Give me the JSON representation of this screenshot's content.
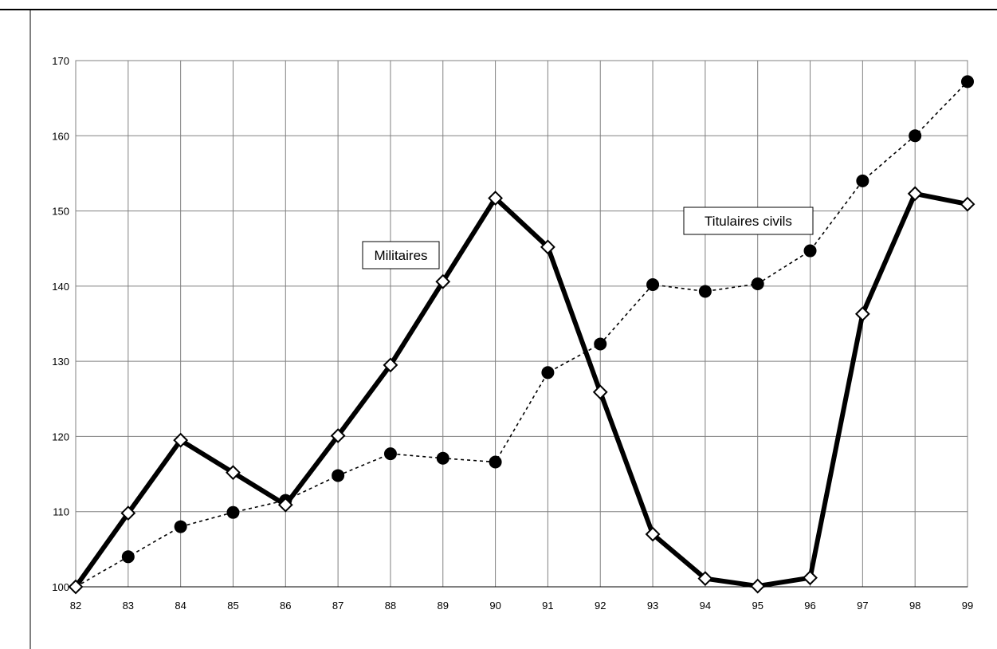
{
  "chart_data": {
    "type": "line",
    "title": "",
    "xlabel": "",
    "ylabel": "",
    "categories": [
      "82",
      "83",
      "84",
      "85",
      "86",
      "87",
      "88",
      "89",
      "90",
      "91",
      "92",
      "93",
      "94",
      "95",
      "96",
      "97",
      "98",
      "99"
    ],
    "ylim": [
      100,
      170
    ],
    "yticks": [
      "100",
      "110",
      "120",
      "130",
      "140",
      "150",
      "160",
      "170"
    ],
    "grid": true,
    "series": [
      {
        "name": "Militaires",
        "style": "solid-thick-diamond",
        "values": [
          100,
          109.8,
          119.5,
          115.2,
          110.9,
          120.1,
          129.5,
          140.6,
          151.7,
          145.2,
          125.9,
          107.0,
          101.1,
          100.1,
          101.2,
          136.3,
          152.3,
          150.9
        ]
      },
      {
        "name": "Titulaires civils",
        "style": "dashed-circle",
        "values": [
          100,
          104.0,
          108.0,
          109.9,
          111.5,
          114.8,
          117.7,
          117.1,
          116.6,
          128.5,
          132.3,
          140.2,
          139.3,
          140.3,
          144.7,
          154.0,
          160.0,
          167.2
        ]
      }
    ],
    "colors": {
      "line": "#000000",
      "grid": "#808080",
      "background": "#ffffff",
      "marker_fill_diamond": "#ffffff"
    }
  }
}
